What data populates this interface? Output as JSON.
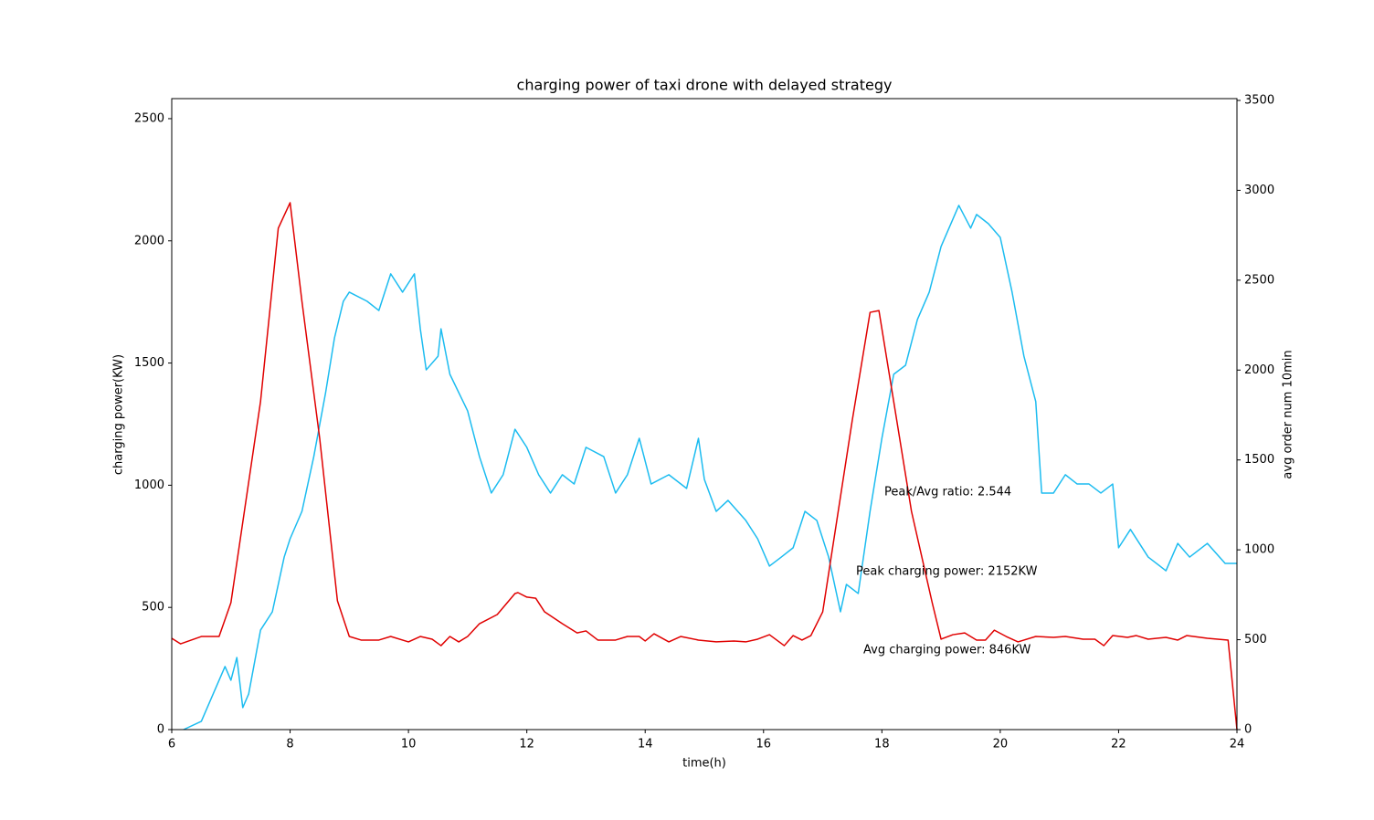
{
  "chart_data": {
    "type": "line",
    "title": "charging power of taxi drone with delayed strategy",
    "xlabel": "time(h)",
    "ylabel": "charging power(KW)",
    "y2label": "avg order num 10min",
    "xlim": [
      6,
      24
    ],
    "xticks": [
      6,
      8,
      10,
      12,
      14,
      16,
      18,
      20,
      22,
      24
    ],
    "ylim": [
      0,
      2582
    ],
    "yticks": [
      0,
      500,
      1000,
      1500,
      2000,
      2500
    ],
    "y2lim": [
      0,
      3510
    ],
    "y2ticks": [
      0,
      500,
      1000,
      1500,
      2000,
      2500,
      3000,
      3500
    ],
    "annotations": [
      "Peak/Avg ratio: 2.544",
      "Peak charging power: 2152KW",
      "Avg charging power: 846KW"
    ],
    "series": [
      {
        "color": "#1cbcf0",
        "x": [
          6.2,
          6.5,
          6.7,
          6.9,
          7.0,
          7.1,
          7.2,
          7.3,
          7.5,
          7.7,
          7.9,
          8.0,
          8.2,
          8.4,
          8.6,
          8.75,
          8.9,
          9.0,
          9.3,
          9.5,
          9.7,
          9.9,
          10.1,
          10.2,
          10.3,
          10.5,
          10.55,
          10.7,
          11.0,
          11.2,
          11.4,
          11.6,
          11.8,
          12.0,
          12.2,
          12.4,
          12.6,
          12.8,
          13.0,
          13.3,
          13.5,
          13.7,
          13.9,
          14.1,
          14.4,
          14.7,
          14.9,
          15.0,
          15.2,
          15.4,
          15.7,
          15.9,
          16.1,
          16.3,
          16.5,
          16.7,
          16.9,
          17.1,
          17.3,
          17.4,
          17.6,
          17.8,
          18.0,
          18.2,
          18.4,
          18.6,
          18.8,
          19.0,
          19.2,
          19.3,
          19.5,
          19.6,
          19.8,
          20.0,
          20.2,
          20.4,
          20.6,
          20.7,
          20.9,
          21.1,
          21.3,
          21.5,
          21.7,
          21.9,
          22.0,
          22.2,
          22.5,
          22.8,
          23.0,
          23.2,
          23.5,
          23.8,
          24.0
        ],
        "values": [
          0,
          34,
          146,
          258,
          202,
          295,
          90,
          146,
          407,
          482,
          706,
          781,
          893,
          1117,
          1379,
          1603,
          1753,
          1790,
          1753,
          1715,
          1865,
          1790,
          1865,
          1640,
          1472,
          1528,
          1640,
          1454,
          1304,
          1117,
          968,
          1043,
          1229,
          1155,
          1043,
          968,
          1043,
          1005,
          1155,
          1117,
          968,
          1043,
          1192,
          1005,
          1043,
          987,
          1192,
          1024,
          893,
          938,
          856,
          781,
          669,
          706,
          744,
          893,
          856,
          706,
          482,
          594,
          557,
          893,
          1192,
          1454,
          1491,
          1678,
          1790,
          1977,
          2089,
          2145,
          2052,
          2108,
          2070,
          2014,
          1790,
          1528,
          1342,
          968,
          968,
          1043,
          1005,
          1005,
          968,
          1005,
          744,
          819,
          706,
          650,
          762,
          706,
          762,
          680,
          680
        ]
      },
      {
        "color": "#e00000",
        "axis": "y2",
        "x": [
          6.0,
          6.15,
          6.5,
          6.8,
          7.0,
          7.5,
          7.8,
          8.0,
          8.2,
          8.5,
          8.8,
          9.0,
          9.2,
          9.5,
          9.7,
          10.0,
          10.2,
          10.4,
          10.55,
          10.7,
          10.85,
          11.0,
          11.2,
          11.5,
          11.8,
          11.85,
          12.0,
          12.15,
          12.3,
          12.6,
          12.85,
          13.0,
          13.2,
          13.5,
          13.7,
          13.9,
          14.0,
          14.15,
          14.4,
          14.6,
          14.9,
          15.2,
          15.5,
          15.7,
          15.9,
          16.1,
          16.35,
          16.5,
          16.65,
          16.8,
          17.0,
          17.5,
          17.8,
          17.95,
          18.2,
          18.5,
          18.85,
          19.0,
          19.2,
          19.4,
          19.6,
          19.75,
          19.9,
          20.1,
          20.3,
          20.6,
          20.9,
          21.1,
          21.4,
          21.6,
          21.75,
          21.9,
          22.15,
          22.3,
          22.5,
          22.8,
          23.0,
          23.15,
          23.5,
          23.85,
          24.0
        ],
        "values": [
          508,
          477,
          518,
          518,
          706,
          1824,
          2789,
          2931,
          2382,
          1620,
          716,
          518,
          498,
          498,
          518,
          488,
          518,
          503,
          467,
          518,
          488,
          518,
          589,
          640,
          757,
          762,
          737,
          731,
          655,
          589,
          538,
          549,
          498,
          498,
          518,
          518,
          493,
          533,
          488,
          518,
          498,
          488,
          493,
          488,
          503,
          528,
          467,
          523,
          498,
          523,
          655,
          1722,
          2321,
          2331,
          1824,
          1214,
          706,
          503,
          528,
          538,
          498,
          498,
          553,
          518,
          488,
          518,
          513,
          518,
          503,
          503,
          467,
          523,
          513,
          523,
          503,
          513,
          498,
          523,
          508,
          498,
          0
        ]
      }
    ]
  }
}
